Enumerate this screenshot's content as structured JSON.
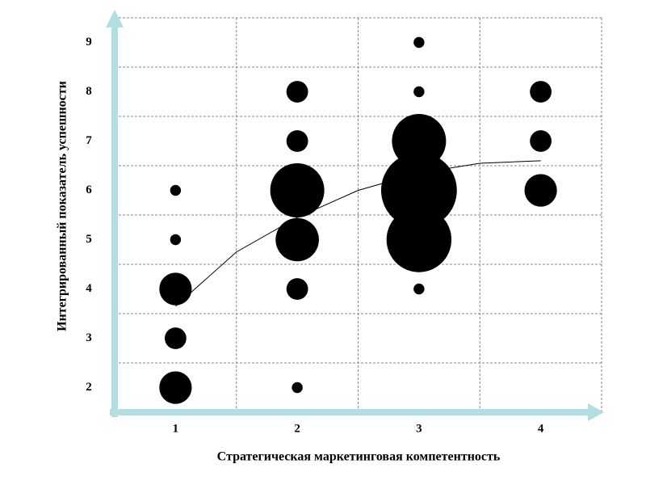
{
  "chart_data": {
    "type": "scatter",
    "x_label": "Стратегическая маркетинговая компетентность",
    "y_label": "Интегрированный показатель успешности",
    "xlim": [
      0.5,
      4.5
    ],
    "ylim": [
      1.5,
      9.5
    ],
    "xticks": [
      1,
      2,
      3,
      4
    ],
    "yticks": [
      2,
      3,
      4,
      5,
      6,
      7,
      8,
      9
    ],
    "grid": true,
    "series": [
      {
        "type": "bubble",
        "color": "#000000",
        "x": [
          1,
          1,
          1,
          1,
          1,
          2,
          2,
          2,
          2,
          2,
          2,
          3,
          3,
          3,
          3,
          3,
          3,
          4,
          4,
          4
        ],
        "values": [
          2,
          3,
          4,
          5,
          6,
          2,
          4,
          5,
          6,
          7,
          8,
          4,
          5,
          6,
          7,
          8,
          9,
          6,
          7,
          8
        ],
        "sizes": [
          3,
          2,
          3,
          1,
          1,
          1,
          2,
          4,
          5,
          2,
          2,
          1,
          6,
          7,
          5,
          1,
          1,
          3,
          2,
          2
        ]
      },
      {
        "type": "line",
        "color": "#000000",
        "x": [
          1,
          1.5,
          2,
          2.5,
          3,
          3.5,
          4
        ],
        "values": [
          3.65,
          4.75,
          5.45,
          6.0,
          6.35,
          6.55,
          6.6
        ]
      }
    ]
  }
}
